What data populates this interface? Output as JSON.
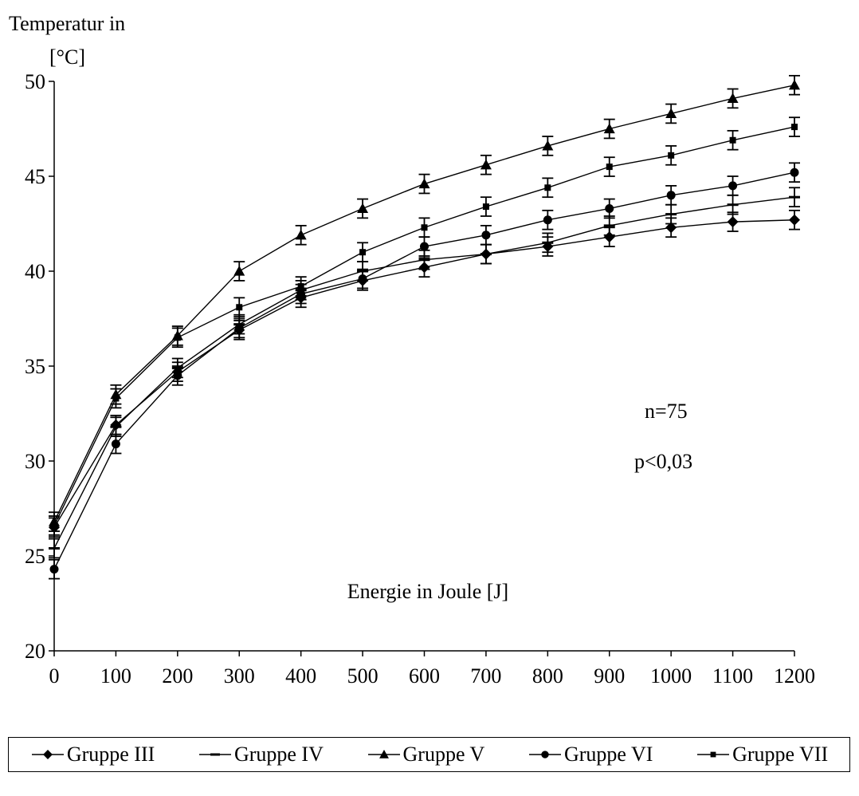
{
  "chart_data": {
    "type": "line",
    "ylabel_line1": "Temperatur in",
    "ylabel_line2": "[°C]",
    "xlabel": "Energie in Joule [J]",
    "x": [
      0,
      100,
      200,
      300,
      400,
      500,
      600,
      700,
      800,
      900,
      1000,
      1100,
      1200
    ],
    "xlim": [
      0,
      1200
    ],
    "ylim": [
      20,
      50
    ],
    "xticks": [
      "0",
      "100",
      "200",
      "300",
      "400",
      "500",
      "600",
      "700",
      "800",
      "900",
      "1000",
      "1100",
      "1200"
    ],
    "yticks": [
      "20",
      "25",
      "30",
      "35",
      "40",
      "45",
      "50"
    ],
    "grid": false,
    "legend_position": "bottom",
    "error_bar_halfwidth": 0.5,
    "annotations": [
      "n=75",
      "p<0,03"
    ],
    "series": [
      {
        "name": "Gruppe III",
        "marker": "diamond",
        "values": [
          26.5,
          31.9,
          34.7,
          36.9,
          38.6,
          39.5,
          40.2,
          40.9,
          41.3,
          41.8,
          42.3,
          42.6,
          42.7
        ]
      },
      {
        "name": "Gruppe IV",
        "marker": "dash",
        "values": [
          25.4,
          31.8,
          34.9,
          37.2,
          39.0,
          40.0,
          40.6,
          40.9,
          41.5,
          42.4,
          43.0,
          43.5,
          43.9
        ]
      },
      {
        "name": "Gruppe V",
        "marker": "triangle",
        "values": [
          26.8,
          33.5,
          36.6,
          40.0,
          41.9,
          43.3,
          44.6,
          45.6,
          46.6,
          47.5,
          48.3,
          49.1,
          49.8
        ]
      },
      {
        "name": "Gruppe VI",
        "marker": "circle",
        "values": [
          24.3,
          30.9,
          34.5,
          37.0,
          38.8,
          39.6,
          41.3,
          41.9,
          42.7,
          43.3,
          44.0,
          44.5,
          45.2
        ]
      },
      {
        "name": "Gruppe VII",
        "marker": "square",
        "values": [
          26.6,
          33.3,
          36.5,
          38.1,
          39.2,
          41.0,
          42.3,
          43.4,
          44.4,
          45.5,
          46.1,
          46.9,
          47.6
        ]
      }
    ]
  }
}
